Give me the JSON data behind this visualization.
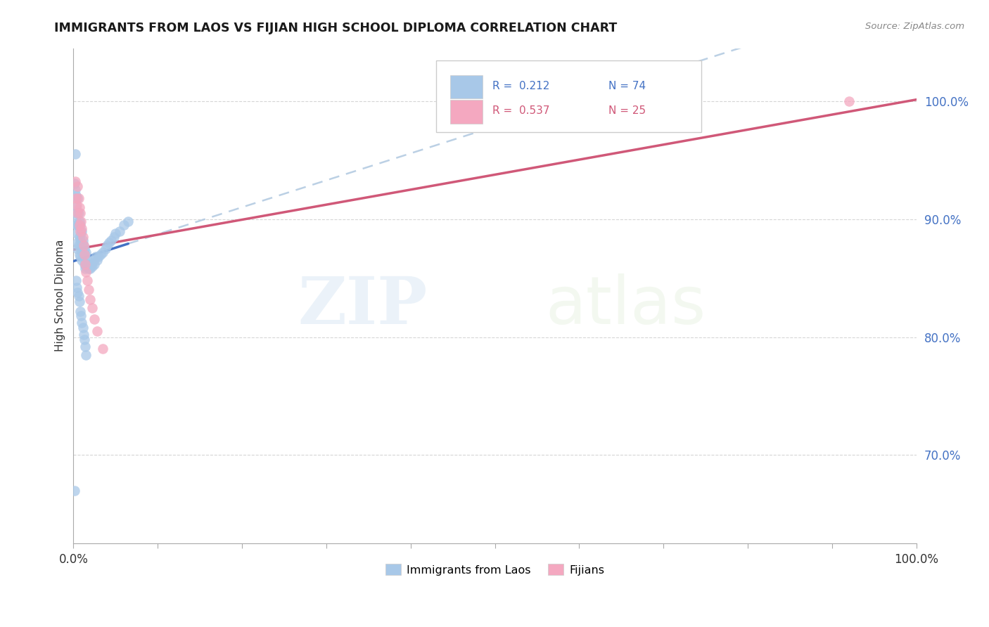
{
  "title": "IMMIGRANTS FROM LAOS VS FIJIAN HIGH SCHOOL DIPLOMA CORRELATION CHART",
  "source": "Source: ZipAtlas.com",
  "ylabel": "High School Diploma",
  "yticks": [
    0.7,
    0.8,
    0.9,
    1.0
  ],
  "ytick_labels": [
    "70.0%",
    "80.0%",
    "90.0%",
    "100.0%"
  ],
  "xlim": [
    0.0,
    1.0
  ],
  "ylim": [
    0.625,
    1.045
  ],
  "legend_laos": "Immigrants from Laos",
  "legend_fijians": "Fijians",
  "R_laos": "0.212",
  "N_laos": "74",
  "R_fijians": "0.537",
  "N_fijians": "25",
  "color_laos": "#a8c8e8",
  "color_laos_line": "#4472c4",
  "color_fijians": "#f4a8c0",
  "color_fijians_line": "#d05878",
  "color_dashed": "#b0c8e0",
  "background_color": "#ffffff",
  "watermark_zip": "ZIP",
  "watermark_atlas": "atlas",
  "laos_x": [
    0.001,
    0.002,
    0.002,
    0.003,
    0.003,
    0.003,
    0.004,
    0.004,
    0.004,
    0.005,
    0.005,
    0.005,
    0.005,
    0.006,
    0.006,
    0.006,
    0.007,
    0.007,
    0.007,
    0.008,
    0.008,
    0.008,
    0.009,
    0.009,
    0.01,
    0.01,
    0.01,
    0.011,
    0.011,
    0.012,
    0.012,
    0.013,
    0.013,
    0.014,
    0.014,
    0.015,
    0.015,
    0.016,
    0.017,
    0.018,
    0.019,
    0.02,
    0.021,
    0.022,
    0.024,
    0.025,
    0.026,
    0.028,
    0.03,
    0.032,
    0.035,
    0.038,
    0.04,
    0.042,
    0.045,
    0.048,
    0.05,
    0.055,
    0.06,
    0.065,
    0.003,
    0.004,
    0.005,
    0.006,
    0.007,
    0.008,
    0.009,
    0.01,
    0.011,
    0.012,
    0.013,
    0.014,
    0.015,
    0.001
  ],
  "laos_y": [
    0.93,
    0.955,
    0.925,
    0.92,
    0.91,
    0.9,
    0.905,
    0.895,
    0.888,
    0.918,
    0.895,
    0.88,
    0.875,
    0.905,
    0.895,
    0.878,
    0.898,
    0.885,
    0.87,
    0.895,
    0.882,
    0.868,
    0.888,
    0.875,
    0.89,
    0.878,
    0.865,
    0.882,
    0.87,
    0.878,
    0.868,
    0.875,
    0.862,
    0.87,
    0.858,
    0.872,
    0.86,
    0.865,
    0.862,
    0.858,
    0.862,
    0.858,
    0.862,
    0.86,
    0.865,
    0.862,
    0.868,
    0.865,
    0.868,
    0.87,
    0.872,
    0.875,
    0.878,
    0.88,
    0.882,
    0.885,
    0.888,
    0.89,
    0.895,
    0.898,
    0.848,
    0.842,
    0.838,
    0.835,
    0.83,
    0.822,
    0.818,
    0.812,
    0.808,
    0.802,
    0.798,
    0.792,
    0.785,
    0.67
  ],
  "fijians_x": [
    0.002,
    0.003,
    0.004,
    0.005,
    0.005,
    0.006,
    0.007,
    0.007,
    0.008,
    0.008,
    0.009,
    0.01,
    0.011,
    0.012,
    0.013,
    0.014,
    0.015,
    0.016,
    0.018,
    0.02,
    0.022,
    0.025,
    0.028,
    0.035,
    0.92
  ],
  "fijians_y": [
    0.932,
    0.918,
    0.912,
    0.928,
    0.905,
    0.918,
    0.91,
    0.895,
    0.905,
    0.89,
    0.898,
    0.892,
    0.885,
    0.878,
    0.87,
    0.862,
    0.855,
    0.848,
    0.84,
    0.832,
    0.825,
    0.815,
    0.805,
    0.79,
    1.0
  ]
}
